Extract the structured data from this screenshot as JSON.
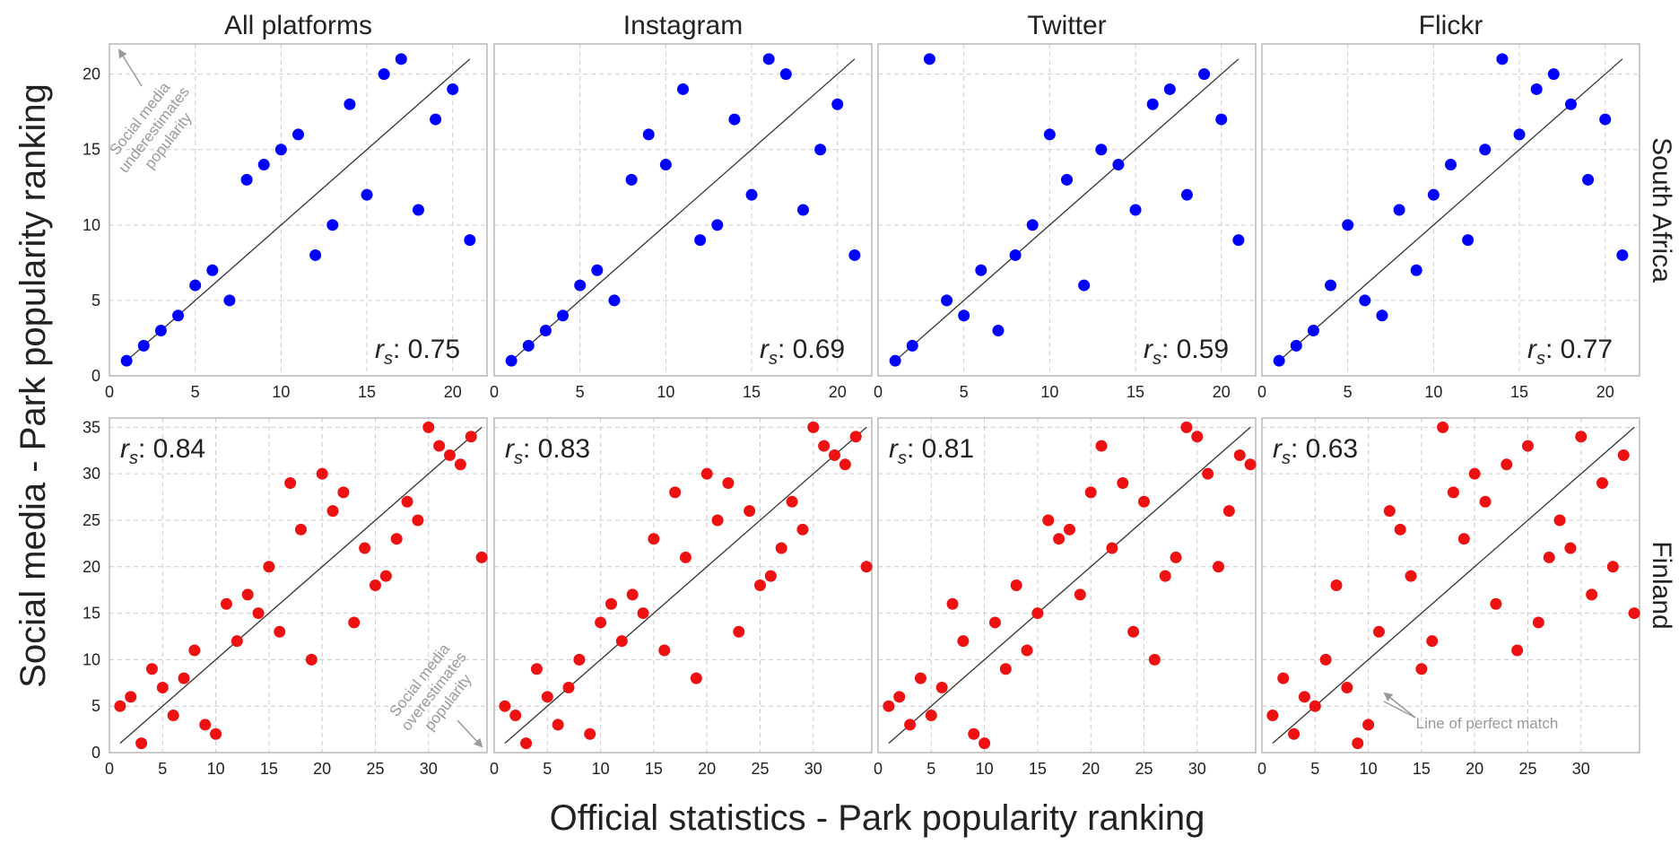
{
  "figure": {
    "xlabel": "Official statistics - Park popularity ranking",
    "ylabel": "Social media - Park popularity ranking",
    "columns": [
      "All platforms",
      "Instagram",
      "Twitter",
      "Flickr"
    ],
    "rows": [
      "South Africa",
      "Finland"
    ],
    "colors": {
      "south_africa": "#0000ff",
      "finland": "#ee1111",
      "diagonal": "#333333",
      "grid": "#cccccc",
      "annotation": "#9a9a9a"
    }
  },
  "annotations": {
    "underestimates": [
      "Social media",
      "underestimates",
      "popularity"
    ],
    "overestimates": [
      "Social media",
      "overestimates",
      "popularity"
    ],
    "perfect_match": "Line of perfect match"
  },
  "chart_data": [
    {
      "type": "scatter",
      "row": "South Africa",
      "column": "All platforms",
      "rs": "0.75",
      "xlim": [
        0,
        22
      ],
      "ylim": [
        0,
        22
      ],
      "xticks": [
        0,
        5,
        10,
        15,
        20
      ],
      "yticks": [
        0,
        5,
        10,
        15,
        20
      ],
      "points": [
        [
          1,
          1
        ],
        [
          2,
          2
        ],
        [
          3,
          3
        ],
        [
          4,
          4
        ],
        [
          5,
          6
        ],
        [
          6,
          7
        ],
        [
          7,
          5
        ],
        [
          8,
          13
        ],
        [
          9,
          14
        ],
        [
          10,
          15
        ],
        [
          11,
          16
        ],
        [
          12,
          8
        ],
        [
          13,
          10
        ],
        [
          14,
          18
        ],
        [
          15,
          12
        ],
        [
          16,
          20
        ],
        [
          17,
          21
        ],
        [
          18,
          11
        ],
        [
          19,
          17
        ],
        [
          20,
          19
        ],
        [
          21,
          9
        ]
      ]
    },
    {
      "type": "scatter",
      "row": "South Africa",
      "column": "Instagram",
      "rs": "0.69",
      "xlim": [
        0,
        22
      ],
      "ylim": [
        0,
        22
      ],
      "xticks": [
        0,
        5,
        10,
        15,
        20
      ],
      "yticks": [
        0,
        5,
        10,
        15,
        20
      ],
      "points": [
        [
          1,
          1
        ],
        [
          2,
          2
        ],
        [
          3,
          3
        ],
        [
          4,
          4
        ],
        [
          5,
          6
        ],
        [
          6,
          7
        ],
        [
          7,
          5
        ],
        [
          8,
          13
        ],
        [
          9,
          16
        ],
        [
          10,
          14
        ],
        [
          11,
          19
        ],
        [
          12,
          9
        ],
        [
          13,
          10
        ],
        [
          14,
          17
        ],
        [
          15,
          12
        ],
        [
          16,
          21
        ],
        [
          17,
          20
        ],
        [
          18,
          11
        ],
        [
          19,
          15
        ],
        [
          20,
          18
        ],
        [
          21,
          8
        ]
      ]
    },
    {
      "type": "scatter",
      "row": "South Africa",
      "column": "Twitter",
      "rs": "0.59",
      "xlim": [
        0,
        22
      ],
      "ylim": [
        0,
        22
      ],
      "xticks": [
        0,
        5,
        10,
        15,
        20
      ],
      "yticks": [
        0,
        5,
        10,
        15,
        20
      ],
      "points": [
        [
          1,
          1
        ],
        [
          2,
          2
        ],
        [
          3,
          21
        ],
        [
          4,
          5
        ],
        [
          5,
          4
        ],
        [
          6,
          7
        ],
        [
          7,
          3
        ],
        [
          8,
          8
        ],
        [
          9,
          10
        ],
        [
          10,
          16
        ],
        [
          11,
          13
        ],
        [
          12,
          6
        ],
        [
          13,
          15
        ],
        [
          14,
          14
        ],
        [
          15,
          11
        ],
        [
          16,
          18
        ],
        [
          17,
          19
        ],
        [
          18,
          12
        ],
        [
          19,
          20
        ],
        [
          20,
          17
        ],
        [
          21,
          9
        ]
      ]
    },
    {
      "type": "scatter",
      "row": "South Africa",
      "column": "Flickr",
      "rs": "0.77",
      "xlim": [
        0,
        22
      ],
      "ylim": [
        0,
        22
      ],
      "xticks": [
        0,
        5,
        10,
        15,
        20
      ],
      "yticks": [
        0,
        5,
        10,
        15,
        20
      ],
      "points": [
        [
          1,
          1
        ],
        [
          2,
          2
        ],
        [
          3,
          3
        ],
        [
          4,
          6
        ],
        [
          5,
          10
        ],
        [
          6,
          5
        ],
        [
          7,
          4
        ],
        [
          8,
          11
        ],
        [
          9,
          7
        ],
        [
          10,
          12
        ],
        [
          11,
          14
        ],
        [
          12,
          9
        ],
        [
          13,
          15
        ],
        [
          14,
          21
        ],
        [
          15,
          16
        ],
        [
          16,
          19
        ],
        [
          17,
          20
        ],
        [
          18,
          18
        ],
        [
          19,
          13
        ],
        [
          20,
          17
        ],
        [
          21,
          8
        ]
      ]
    },
    {
      "type": "scatter",
      "row": "Finland",
      "column": "All platforms",
      "rs": "0.84",
      "xlim": [
        0,
        35.5
      ],
      "ylim": [
        0,
        36
      ],
      "xticks": [
        0,
        5,
        10,
        15,
        20,
        25,
        30
      ],
      "yticks": [
        0,
        5,
        10,
        15,
        20,
        25,
        30,
        35
      ],
      "points": [
        [
          1,
          5
        ],
        [
          2,
          6
        ],
        [
          3,
          1
        ],
        [
          4,
          9
        ],
        [
          5,
          7
        ],
        [
          6,
          4
        ],
        [
          7,
          8
        ],
        [
          8,
          11
        ],
        [
          9,
          3
        ],
        [
          10,
          2
        ],
        [
          11,
          16
        ],
        [
          12,
          12
        ],
        [
          13,
          17
        ],
        [
          14,
          15
        ],
        [
          15,
          20
        ],
        [
          16,
          13
        ],
        [
          17,
          29
        ],
        [
          18,
          24
        ],
        [
          19,
          10
        ],
        [
          20,
          30
        ],
        [
          21,
          26
        ],
        [
          22,
          28
        ],
        [
          23,
          14
        ],
        [
          24,
          22
        ],
        [
          25,
          18
        ],
        [
          26,
          19
        ],
        [
          27,
          23
        ],
        [
          28,
          27
        ],
        [
          29,
          25
        ],
        [
          30,
          35
        ],
        [
          31,
          33
        ],
        [
          32,
          32
        ],
        [
          33,
          31
        ],
        [
          34,
          34
        ],
        [
          35,
          21
        ]
      ]
    },
    {
      "type": "scatter",
      "row": "Finland",
      "column": "Instagram",
      "rs": "0.83",
      "xlim": [
        0,
        35.5
      ],
      "ylim": [
        0,
        36
      ],
      "xticks": [
        0,
        5,
        10,
        15,
        20,
        25,
        30
      ],
      "yticks": [
        0,
        5,
        10,
        15,
        20,
        25,
        30,
        35
      ],
      "points": [
        [
          1,
          5
        ],
        [
          2,
          4
        ],
        [
          3,
          1
        ],
        [
          4,
          9
        ],
        [
          5,
          6
        ],
        [
          6,
          3
        ],
        [
          7,
          7
        ],
        [
          8,
          10
        ],
        [
          9,
          2
        ],
        [
          10,
          14
        ],
        [
          11,
          16
        ],
        [
          12,
          12
        ],
        [
          13,
          17
        ],
        [
          14,
          15
        ],
        [
          15,
          23
        ],
        [
          16,
          11
        ],
        [
          17,
          28
        ],
        [
          18,
          21
        ],
        [
          19,
          8
        ],
        [
          20,
          30
        ],
        [
          21,
          25
        ],
        [
          22,
          29
        ],
        [
          23,
          13
        ],
        [
          24,
          26
        ],
        [
          25,
          18
        ],
        [
          26,
          19
        ],
        [
          27,
          22
        ],
        [
          28,
          27
        ],
        [
          29,
          24
        ],
        [
          30,
          35
        ],
        [
          31,
          33
        ],
        [
          32,
          32
        ],
        [
          33,
          31
        ],
        [
          34,
          34
        ],
        [
          35,
          20
        ]
      ]
    },
    {
      "type": "scatter",
      "row": "Finland",
      "column": "Twitter",
      "rs": "0.81",
      "xlim": [
        0,
        35.5
      ],
      "ylim": [
        0,
        36
      ],
      "xticks": [
        0,
        5,
        10,
        15,
        20,
        25,
        30
      ],
      "yticks": [
        0,
        5,
        10,
        15,
        20,
        25,
        30,
        35
      ],
      "points": [
        [
          1,
          5
        ],
        [
          2,
          6
        ],
        [
          3,
          3
        ],
        [
          4,
          8
        ],
        [
          5,
          4
        ],
        [
          6,
          7
        ],
        [
          7,
          16
        ],
        [
          8,
          12
        ],
        [
          9,
          2
        ],
        [
          10,
          1
        ],
        [
          11,
          14
        ],
        [
          12,
          9
        ],
        [
          13,
          18
        ],
        [
          14,
          11
        ],
        [
          15,
          15
        ],
        [
          16,
          25
        ],
        [
          17,
          23
        ],
        [
          18,
          24
        ],
        [
          19,
          17
        ],
        [
          20,
          28
        ],
        [
          21,
          33
        ],
        [
          22,
          22
        ],
        [
          23,
          29
        ],
        [
          24,
          13
        ],
        [
          25,
          27
        ],
        [
          26,
          10
        ],
        [
          27,
          19
        ],
        [
          28,
          21
        ],
        [
          29,
          35
        ],
        [
          30,
          34
        ],
        [
          31,
          30
        ],
        [
          32,
          20
        ],
        [
          33,
          26
        ],
        [
          34,
          32
        ],
        [
          35,
          31
        ]
      ]
    },
    {
      "type": "scatter",
      "row": "Finland",
      "column": "Flickr",
      "rs": "0.63",
      "xlim": [
        0,
        35.5
      ],
      "ylim": [
        0,
        36
      ],
      "xticks": [
        0,
        5,
        10,
        15,
        20,
        25,
        30
      ],
      "yticks": [
        0,
        5,
        10,
        15,
        20,
        25,
        30,
        35
      ],
      "points": [
        [
          1,
          4
        ],
        [
          2,
          8
        ],
        [
          3,
          2
        ],
        [
          4,
          6
        ],
        [
          5,
          5
        ],
        [
          6,
          10
        ],
        [
          7,
          18
        ],
        [
          8,
          7
        ],
        [
          9,
          1
        ],
        [
          10,
          3
        ],
        [
          11,
          13
        ],
        [
          12,
          26
        ],
        [
          13,
          24
        ],
        [
          14,
          19
        ],
        [
          15,
          9
        ],
        [
          16,
          12
        ],
        [
          17,
          35
        ],
        [
          18,
          28
        ],
        [
          19,
          23
        ],
        [
          20,
          30
        ],
        [
          21,
          27
        ],
        [
          22,
          16
        ],
        [
          23,
          31
        ],
        [
          24,
          11
        ],
        [
          25,
          33
        ],
        [
          26,
          14
        ],
        [
          27,
          21
        ],
        [
          28,
          25
        ],
        [
          29,
          22
        ],
        [
          30,
          34
        ],
        [
          31,
          17
        ],
        [
          32,
          29
        ],
        [
          33,
          20
        ],
        [
          34,
          32
        ],
        [
          35,
          15
        ]
      ]
    }
  ]
}
